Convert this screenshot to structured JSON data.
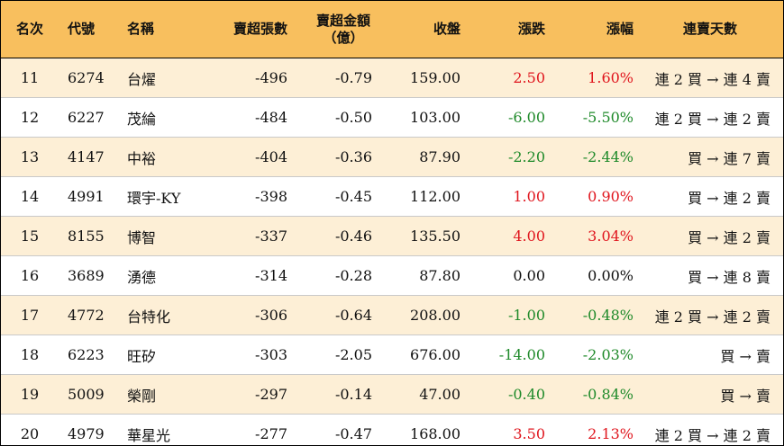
{
  "headers": {
    "rank": "名次",
    "code": "代號",
    "name": "名稱",
    "net_lots": "賣超張數",
    "net_amount_line1": "賣超金額",
    "net_amount_line2": "（億）",
    "close": "收盤",
    "change": "漲跌",
    "pct": "漲幅",
    "streak": "連賣天數"
  },
  "rows": [
    {
      "rank": "11",
      "code": "6274",
      "name": "台燿",
      "net_lots": "-496",
      "net_amount": "-0.79",
      "close": "159.00",
      "change": "2.50",
      "pct": "1.60%",
      "streak": "連 2 買 → 連 4 賣",
      "trend": "up"
    },
    {
      "rank": "12",
      "code": "6227",
      "name": "茂綸",
      "net_lots": "-484",
      "net_amount": "-0.50",
      "close": "103.00",
      "change": "-6.00",
      "pct": "-5.50%",
      "streak": "連 2 買 → 連 2 賣",
      "trend": "down"
    },
    {
      "rank": "13",
      "code": "4147",
      "name": "中裕",
      "net_lots": "-404",
      "net_amount": "-0.36",
      "close": "87.90",
      "change": "-2.20",
      "pct": "-2.44%",
      "streak": "買 → 連 7 賣",
      "trend": "down"
    },
    {
      "rank": "14",
      "code": "4991",
      "name": "環宇-KY",
      "net_lots": "-398",
      "net_amount": "-0.45",
      "close": "112.00",
      "change": "1.00",
      "pct": "0.90%",
      "streak": "買 → 連 2 賣",
      "trend": "up"
    },
    {
      "rank": "15",
      "code": "8155",
      "name": "博智",
      "net_lots": "-337",
      "net_amount": "-0.46",
      "close": "135.50",
      "change": "4.00",
      "pct": "3.04%",
      "streak": "買 → 連 2 賣",
      "trend": "up"
    },
    {
      "rank": "16",
      "code": "3689",
      "name": "湧德",
      "net_lots": "-314",
      "net_amount": "-0.28",
      "close": "87.80",
      "change": "0.00",
      "pct": "0.00%",
      "streak": "買 → 連 8 賣",
      "trend": "flat"
    },
    {
      "rank": "17",
      "code": "4772",
      "name": "台特化",
      "net_lots": "-306",
      "net_amount": "-0.64",
      "close": "208.00",
      "change": "-1.00",
      "pct": "-0.48%",
      "streak": "連 2 買 → 連 2 賣",
      "trend": "down"
    },
    {
      "rank": "18",
      "code": "6223",
      "name": "旺矽",
      "net_lots": "-303",
      "net_amount": "-2.05",
      "close": "676.00",
      "change": "-14.00",
      "pct": "-2.03%",
      "streak": "買 → 賣",
      "trend": "down"
    },
    {
      "rank": "19",
      "code": "5009",
      "name": "榮剛",
      "net_lots": "-297",
      "net_amount": "-0.14",
      "close": "47.00",
      "change": "-0.40",
      "pct": "-0.84%",
      "streak": "買 → 賣",
      "trend": "down"
    },
    {
      "rank": "20",
      "code": "4979",
      "name": "華星光",
      "net_lots": "-277",
      "net_amount": "-0.47",
      "close": "168.00",
      "change": "3.50",
      "pct": "2.13%",
      "streak": "連 2 買 → 連 2 賣",
      "trend": "up"
    }
  ],
  "colors": {
    "header_bg": "#f8bf5e",
    "stripe_bg": "#fdefd6",
    "up": "#e0161e",
    "down": "#1f8a2a"
  }
}
